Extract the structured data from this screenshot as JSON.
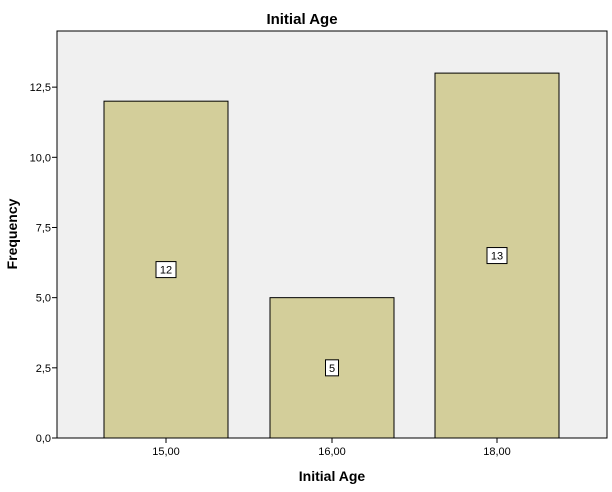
{
  "chart_data": {
    "type": "bar",
    "title": "Initial Age",
    "xlabel": "Initial Age",
    "ylabel": "Frequency",
    "categories": [
      "15,00",
      "16,00",
      "18,00"
    ],
    "values": [
      12,
      5,
      13
    ],
    "data_labels": [
      "12",
      "5",
      "13"
    ],
    "ylim": [
      0,
      14.5
    ],
    "yticks": [
      0,
      2.5,
      5,
      7.5,
      10,
      12.5
    ],
    "ytick_labels": [
      "0,0",
      "2,5",
      "5,0",
      "7,5",
      "10,0",
      "12,5"
    ],
    "grid": false,
    "legend": "none",
    "colors": {
      "bar_fill": "#d3ce9a",
      "bar_stroke": "#000000",
      "plot_background": "#f0f0f0",
      "axis": "#000000",
      "label_box": "#ffffff"
    }
  }
}
